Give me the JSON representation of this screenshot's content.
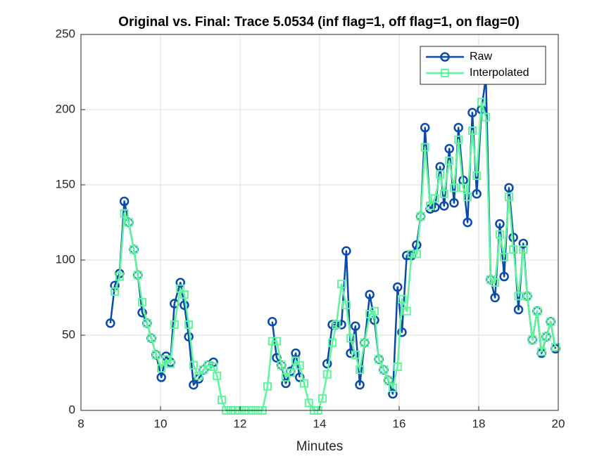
{
  "chart_data": {
    "type": "line",
    "title": "Original vs. Final: Trace 5.0534 (inf flag=1, off flag=1, on flag=0)",
    "x_label": "Minutes",
    "x": [
      8.74,
      8.85,
      8.97,
      9.09,
      9.2,
      9.33,
      9.43,
      9.54,
      9.66,
      9.77,
      9.89,
      10.02,
      10.14,
      10.25,
      10.35,
      10.5,
      10.6,
      10.71,
      10.83,
      10.96,
      11.08,
      11.2,
      11.33,
      11.42,
      11.54,
      11.65,
      11.77,
      11.88,
      11.99,
      12.11,
      12.22,
      12.33,
      12.45,
      12.56,
      12.69,
      12.81,
      12.92,
      13.04,
      13.15,
      13.27,
      13.4,
      13.5,
      13.61,
      13.73,
      13.86,
      13.96,
      14.07,
      14.19,
      14.32,
      14.42,
      14.55,
      14.67,
      14.78,
      14.9,
      15.01,
      15.13,
      15.26,
      15.38,
      15.49,
      15.61,
      15.73,
      15.84,
      15.96,
      16.07,
      16.19,
      16.31,
      16.44,
      16.54,
      16.65,
      16.78,
      16.9,
      17.03,
      17.13,
      17.26,
      17.38,
      17.49,
      17.61,
      17.72,
      17.84,
      17.95,
      18.07,
      18.18,
      18.3,
      18.41,
      18.53,
      18.64,
      18.76,
      18.87,
      19.0,
      19.12,
      19.22,
      19.35,
      19.47,
      19.58,
      19.7,
      19.81,
      19.93
    ],
    "series": [
      {
        "name": "Raw",
        "color": "#0a4aa8",
        "marker": "circle",
        "values": [
          58,
          83,
          91,
          139,
          125,
          107,
          90,
          65,
          58,
          48,
          37,
          22,
          36,
          32,
          71,
          85,
          70,
          49,
          17,
          21,
          27,
          30,
          32,
          null,
          null,
          null,
          null,
          null,
          null,
          null,
          null,
          null,
          null,
          null,
          null,
          59,
          35,
          30,
          18,
          26,
          38,
          22,
          null,
          null,
          null,
          null,
          null,
          31,
          57,
          57,
          57,
          106,
          38,
          56,
          17,
          45,
          77,
          60,
          34,
          27,
          20,
          11,
          82,
          52,
          103,
          103,
          110,
          129,
          188,
          134,
          135,
          162,
          136,
          174,
          138,
          188,
          153,
          125,
          198,
          144,
          200,
          222,
          87,
          75,
          124,
          89,
          148,
          115,
          67,
          111,
          76,
          47,
          66,
          38,
          49,
          59,
          41
        ]
      },
      {
        "name": "Interpolated",
        "color": "#5ef59c",
        "marker": "square",
        "values": [
          null,
          79,
          89,
          131,
          125,
          107,
          90,
          72,
          58,
          48,
          37,
          28,
          34,
          31,
          57,
          81,
          77,
          57,
          30,
          23,
          27,
          30,
          29,
          23,
          7,
          0,
          0,
          0,
          0,
          0,
          0,
          0,
          0,
          0,
          16,
          46,
          46,
          30,
          22,
          25,
          33,
          30,
          18,
          5,
          0,
          0,
          8,
          24,
          45,
          57,
          84,
          70,
          48,
          37,
          27,
          45,
          64,
          66,
          34,
          27,
          20,
          15,
          29,
          74,
          66,
          104,
          104,
          129,
          175,
          136,
          141,
          157,
          144,
          166,
          148,
          180,
          148,
          142,
          186,
          156,
          205,
          195,
          87,
          85,
          117,
          102,
          142,
          107,
          76,
          107,
          76,
          47,
          66,
          39,
          49,
          59,
          42
        ]
      }
    ],
    "xlim": [
      8,
      20
    ],
    "ylim": [
      0,
      250
    ],
    "xticks": [
      8,
      10,
      12,
      14,
      16,
      18,
      20
    ],
    "yticks": [
      0,
      50,
      100,
      150,
      200,
      250
    ],
    "grid": true,
    "legend": "northeast"
  }
}
